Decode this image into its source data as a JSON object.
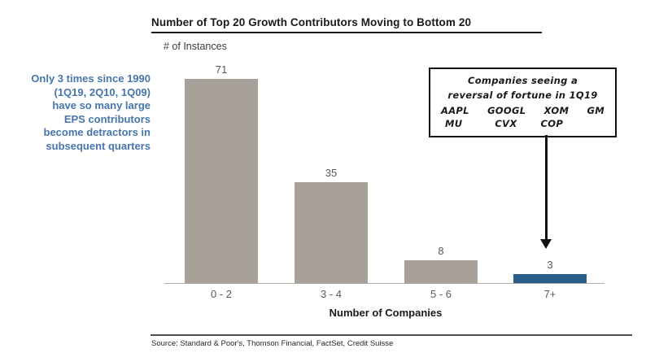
{
  "title": "Number of Top 20 Growth Contributors Moving to Bottom 20",
  "y_axis_label": "# of Instances",
  "x_axis_label": "Number of Companies",
  "source": "Source: Standard & Poor's, Thomson Financial, FactSet, Credit Suisse",
  "sidebar_note": {
    "color": "#4676ac",
    "lines": [
      "Only 3 times since 1990",
      "(1Q19, 2Q10, 1Q09)",
      "have so many large",
      "EPS contributors",
      "become detractors in",
      "subsequent quarters"
    ]
  },
  "annotation_box": {
    "line1": "Companies seeing a",
    "line2": "reversal of fortune in 1Q19",
    "tickers_row1": [
      "AAPL",
      "GOOGL",
      "XOM",
      "GM"
    ],
    "tickers_row2": [
      "MU",
      "CVX",
      "COP"
    ]
  },
  "chart_data": {
    "type": "bar",
    "title": "Number of Top 20 Growth Contributors Moving to Bottom 20",
    "categories": [
      "0 - 2",
      "3 - 4",
      "5 - 6",
      "7+"
    ],
    "values": [
      71,
      35,
      8,
      3
    ],
    "bar_colors": [
      "#a8a19a",
      "#a8a19a",
      "#a8a19a",
      "#2a5f8c"
    ],
    "xlabel": "Number of Companies",
    "ylabel": "# of Instances",
    "ylim": [
      0,
      75
    ],
    "grid": false,
    "legend": "none",
    "data_labels": true,
    "highlight_category": "7+",
    "annotation": "Companies seeing a reversal of fortune in 1Q19: AAPL, GOOGL, XOM, GM, MU, CVX, COP"
  },
  "colors": {
    "bar_gray": "#a8a19a",
    "bar_blue": "#2a5f8c",
    "note_blue": "#4676ac",
    "axis_line": "#b2ada8",
    "value_label": "#595959"
  }
}
